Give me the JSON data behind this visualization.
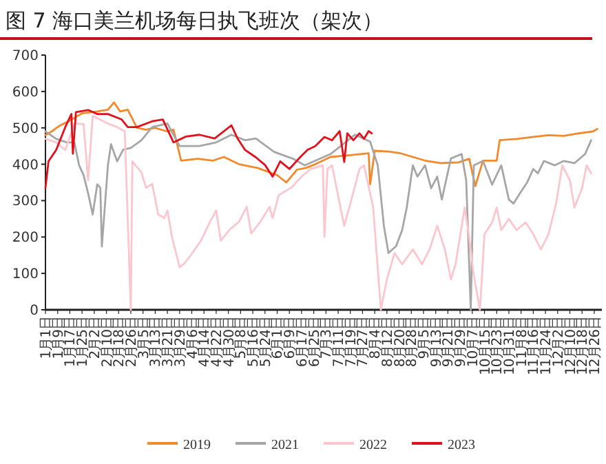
{
  "chart_data": {
    "type": "line",
    "title": "图 7 海口美兰机场每日执飞班次（架次）",
    "legend": "bottom",
    "grid": false,
    "marker": "none",
    "line_style": "solid",
    "ylim": [
      0,
      700
    ],
    "yticks": [
      0,
      100,
      200,
      300,
      400,
      500,
      600,
      700
    ],
    "xlim": [
      "--01-01",
      "--12-31"
    ],
    "xticks": [
      {
        "value": "--01-01",
        "label": "1月1日"
      },
      {
        "value": "--01-09",
        "label": "1月9日"
      },
      {
        "value": "--01-17",
        "label": "1月17日"
      },
      {
        "value": "--01-25",
        "label": "1月25日"
      },
      {
        "value": "--02-02",
        "label": "2月2日"
      },
      {
        "value": "--02-10",
        "label": "2月10日"
      },
      {
        "value": "--02-18",
        "label": "2月18日"
      },
      {
        "value": "--02-26",
        "label": "2月26日"
      },
      {
        "value": "--03-05",
        "label": "3月5日"
      },
      {
        "value": "--03-13",
        "label": "3月13日"
      },
      {
        "value": "--03-21",
        "label": "3月21日"
      },
      {
        "value": "--03-29",
        "label": "3月29日"
      },
      {
        "value": "--04-06",
        "label": "4月6日"
      },
      {
        "value": "--04-14",
        "label": "4月14日"
      },
      {
        "value": "--04-22",
        "label": "4月22日"
      },
      {
        "value": "--04-30",
        "label": "4月30日"
      },
      {
        "value": "--05-08",
        "label": "5月8日"
      },
      {
        "value": "--05-16",
        "label": "5月16日"
      },
      {
        "value": "--05-24",
        "label": "5月24日"
      },
      {
        "value": "--06-01",
        "label": "6月1日"
      },
      {
        "value": "--06-09",
        "label": "6月9日"
      },
      {
        "value": "--06-17",
        "label": "6月17日"
      },
      {
        "value": "--06-25",
        "label": "6月25日"
      },
      {
        "value": "--07-03",
        "label": "7月3日"
      },
      {
        "value": "--07-11",
        "label": "7月11日"
      },
      {
        "value": "--07-19",
        "label": "7月19日"
      },
      {
        "value": "--07-27",
        "label": "7月27日"
      },
      {
        "value": "--08-04",
        "label": "8月4日"
      },
      {
        "value": "--08-12",
        "label": "8月12日"
      },
      {
        "value": "--08-20",
        "label": "8月20日"
      },
      {
        "value": "--08-28",
        "label": "8月28日"
      },
      {
        "value": "--09-05",
        "label": "9月5日"
      },
      {
        "value": "--09-13",
        "label": "9月13日"
      },
      {
        "value": "--09-21",
        "label": "9月21日"
      },
      {
        "value": "--09-29",
        "label": "9月29日"
      },
      {
        "value": "--10-07",
        "label": "10月7日"
      },
      {
        "value": "--10-15",
        "label": "10月15日"
      },
      {
        "value": "--10-23",
        "label": "10月23日"
      },
      {
        "value": "--10-31",
        "label": "10月31日"
      },
      {
        "value": "--11-08",
        "label": "11月8日"
      },
      {
        "value": "--11-16",
        "label": "11月16日"
      },
      {
        "value": "--11-24",
        "label": "11月24日"
      },
      {
        "value": "--12-02",
        "label": "12月2日"
      },
      {
        "value": "--12-10",
        "label": "12月10日"
      },
      {
        "value": "--12-18",
        "label": "12月18日"
      },
      {
        "value": "--12-26",
        "label": "12月26日"
      }
    ],
    "series": [
      {
        "name": "2019",
        "color": "#f08a2c",
        "x": [
          "--01-01",
          "--01-05",
          "--01-10",
          "--01-17",
          "--01-25",
          "--02-04",
          "--02-11",
          "--02-15",
          "--02-19",
          "--02-24",
          "--03-01",
          "--03-07",
          "--03-13",
          "--03-21",
          "--03-25",
          "--03-30",
          "--04-10",
          "--04-20",
          "--04-27",
          "--05-07",
          "--05-19",
          "--06-01",
          "--06-07",
          "--06-14",
          "--06-20",
          "--06-26",
          "--07-06",
          "--07-19",
          "--07-31",
          "--08-01",
          "--08-04",
          "--08-13",
          "--08-21",
          "--09-06",
          "--09-16",
          "--09-28",
          "--10-05",
          "--10-09",
          "--10-14",
          "--10-23",
          "--10-25",
          "--11-06",
          "--11-16",
          "--11-26",
          "--12-06",
          "--12-16",
          "--12-25",
          "--12-28"
        ],
        "values": [
          480,
          490,
          505,
          520,
          540,
          545,
          550,
          570,
          545,
          550,
          500,
          495,
          500,
          490,
          495,
          410,
          415,
          410,
          420,
          400,
          390,
          370,
          350,
          385,
          390,
          400,
          420,
          425,
          430,
          345,
          437,
          435,
          430,
          410,
          403,
          405,
          415,
          340,
          410,
          410,
          466,
          470,
          475,
          480,
          478,
          485,
          490,
          497
        ]
      },
      {
        "name": "2021",
        "color": "#a6a6a6",
        "x": [
          "--01-01",
          "--01-08",
          "--01-15",
          "--01-20",
          "--01-23",
          "--01-26",
          "--01-29",
          "--02-01",
          "--02-04",
          "--02-06",
          "--02-07",
          "--02-11",
          "--02-13",
          "--02-17",
          "--02-21",
          "--02-26",
          "--03-04",
          "--03-11",
          "--03-21",
          "--03-29",
          "--04-11",
          "--04-22",
          "--05-02",
          "--05-11",
          "--05-18",
          "--05-30",
          "--06-12",
          "--06-19",
          "--07-06",
          "--07-22",
          "--08-01",
          "--08-06",
          "--08-10",
          "--08-13",
          "--08-18",
          "--08-22",
          "--08-25",
          "--08-29",
          "--09-01",
          "--09-06",
          "--09-10",
          "--09-14",
          "--09-17",
          "--09-23",
          "--09-30",
          "--10-03",
          "--10-06",
          "--10-08",
          "--10-14",
          "--10-20",
          "--10-26",
          "--10-31",
          "--11-03",
          "--11-08",
          "--11-12",
          "--11-16",
          "--11-19",
          "--11-23",
          "--11-30",
          "--12-06",
          "--12-13",
          "--12-20",
          "--12-24"
        ],
        "values": [
          490,
          470,
          460,
          460,
          398,
          370,
          320,
          262,
          345,
          335,
          174,
          398,
          455,
          408,
          440,
          445,
          466,
          502,
          512,
          450,
          450,
          460,
          481,
          466,
          471,
          434,
          414,
          397,
          428,
          481,
          462,
          397,
          231,
          156,
          175,
          219,
          281,
          397,
          366,
          397,
          334,
          366,
          303,
          416,
          428,
          356,
          0,
          397,
          409,
          344,
          397,
          303,
          292,
          325,
          350,
          387,
          375,
          409,
          397,
          409,
          403,
          428,
          466
        ]
      },
      {
        "name": "2022",
        "color": "#fbc6ce",
        "x": [
          "--01-01",
          "--01-08",
          "--01-14",
          "--01-20",
          "--01-26",
          "--01-29",
          "--02-01",
          "--02-11",
          "--02-17",
          "--02-22",
          "--02-26",
          "--02-27",
          "--03-04",
          "--03-07",
          "--03-11",
          "--03-15",
          "--03-19",
          "--03-21",
          "--03-24",
          "--03-29",
          "--04-01",
          "--04-05",
          "--04-12",
          "--04-18",
          "--04-22",
          "--04-25",
          "--05-01",
          "--05-07",
          "--05-12",
          "--05-15",
          "--05-21",
          "--05-27",
          "--05-29",
          "--06-02",
          "--06-10",
          "--06-17",
          "--06-23",
          "--07-01",
          "--07-02",
          "--07-04",
          "--07-07",
          "--07-12",
          "--07-15",
          "--07-19",
          "--07-25",
          "--07-28",
          "--08-03",
          "--08-08",
          "--08-12",
          "--08-17",
          "--08-22",
          "--08-29",
          "--09-04",
          "--09-09",
          "--09-14",
          "--09-19",
          "--09-23",
          "--09-26",
          "--10-02",
          "--10-05",
          "--10-08",
          "--10-12",
          "--10-15",
          "--10-20",
          "--10-23",
          "--10-26",
          "--10-31",
          "--11-05",
          "--11-11",
          "--11-16",
          "--11-21",
          "--11-26",
          "--12-01",
          "--12-05",
          "--12-10",
          "--12-13",
          "--12-18",
          "--12-21",
          "--12-24"
        ],
        "values": [
          470,
          460,
          439,
          512,
          510,
          356,
          533,
          512,
          502,
          491,
          0,
          408,
          377,
          335,
          346,
          262,
          252,
          273,
          200,
          117,
          127,
          148,
          190,
          242,
          273,
          190,
          221,
          242,
          283,
          210,
          242,
          283,
          252,
          315,
          335,
          366,
          387,
          397,
          200,
          387,
          397,
          292,
          231,
          292,
          387,
          397,
          281,
          0,
          84,
          156,
          125,
          166,
          125,
          166,
          231,
          166,
          84,
          125,
          281,
          198,
          94,
          0,
          208,
          240,
          281,
          219,
          250,
          219,
          240,
          208,
          166,
          208,
          292,
          397,
          356,
          281,
          334,
          397,
          375
        ]
      },
      {
        "name": "2023",
        "color": "#e3101b",
        "x": [
          "--01-01",
          "--01-03",
          "--01-08",
          "--01-14",
          "--01-18",
          "--01-19",
          "--01-21",
          "--01-29",
          "--02-04",
          "--02-11",
          "--02-20",
          "--02-24",
          "--03-01",
          "--03-11",
          "--03-18",
          "--03-25",
          "--04-02",
          "--04-11",
          "--04-21",
          "--05-02",
          "--05-06",
          "--05-11",
          "--05-18",
          "--05-24",
          "--05-29",
          "--06-03",
          "--06-09",
          "--06-16",
          "--06-21",
          "--06-26",
          "--07-02",
          "--07-07",
          "--07-12",
          "--07-15",
          "--07-17",
          "--07-21",
          "--07-25",
          "--07-28",
          "--07-31",
          "--08-02"
        ],
        "values": [
          335,
          408,
          439,
          502,
          538,
          429,
          543,
          549,
          538,
          538,
          523,
          502,
          502,
          518,
          523,
          460,
          476,
          481,
          471,
          507,
          471,
          439,
          419,
          398,
          366,
          408,
          387,
          419,
          440,
          450,
          475,
          466,
          491,
          406,
          485,
          466,
          485,
          470,
          491,
          485
        ]
      }
    ]
  }
}
